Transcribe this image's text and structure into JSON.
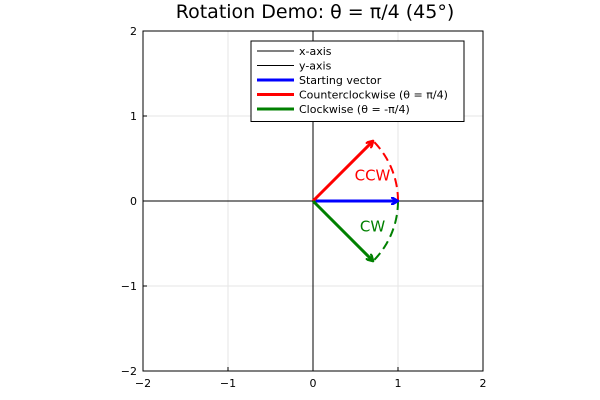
{
  "chart_data": {
    "type": "line",
    "title": "Rotation Demo: θ = π/4 (45°)",
    "xlabel": "",
    "ylabel": "",
    "xlim": [
      -2,
      2
    ],
    "ylim": [
      -2,
      2
    ],
    "xticks": [
      -2,
      -1,
      0,
      1,
      2
    ],
    "yticks": [
      -2,
      -1,
      0,
      1,
      2
    ],
    "xtick_labels": [
      "−2",
      "−1",
      "0",
      "1",
      "2"
    ],
    "ytick_labels": [
      "−2",
      "−1",
      "0",
      "1",
      "2"
    ],
    "grid": true,
    "legend_position": "top-right",
    "series": [
      {
        "name": "x-axis",
        "color": "#000000",
        "x": [
          -2,
          2
        ],
        "y": [
          0,
          0
        ]
      },
      {
        "name": "y-axis",
        "color": "#000000",
        "x": [
          0,
          0
        ],
        "y": [
          -2,
          2
        ]
      },
      {
        "name": "Starting vector",
        "color": "#0000ff",
        "x": [
          0,
          1
        ],
        "y": [
          0,
          0
        ]
      },
      {
        "name": "Counterclockwise (θ = π/4)",
        "color": "#ff0000",
        "x": [
          0,
          0.707
        ],
        "y": [
          0,
          0.707
        ]
      },
      {
        "name": "Clockwise (θ = -π/4)",
        "color": "#008000",
        "x": [
          0,
          0.707
        ],
        "y": [
          0,
          -0.707
        ]
      }
    ],
    "arcs": [
      {
        "color": "#ff0000",
        "radius": 1,
        "from_angle": 0,
        "to_angle": 0.7854,
        "style": "dashed"
      },
      {
        "color": "#008000",
        "radius": 1,
        "from_angle": 0,
        "to_angle": -0.7854,
        "style": "dashed"
      }
    ],
    "annotations": [
      {
        "text": "CCW",
        "x": 0.7,
        "y": 0.3,
        "color": "#ff0000"
      },
      {
        "text": "CW",
        "x": 0.7,
        "y": -0.3,
        "color": "#008000"
      }
    ]
  }
}
